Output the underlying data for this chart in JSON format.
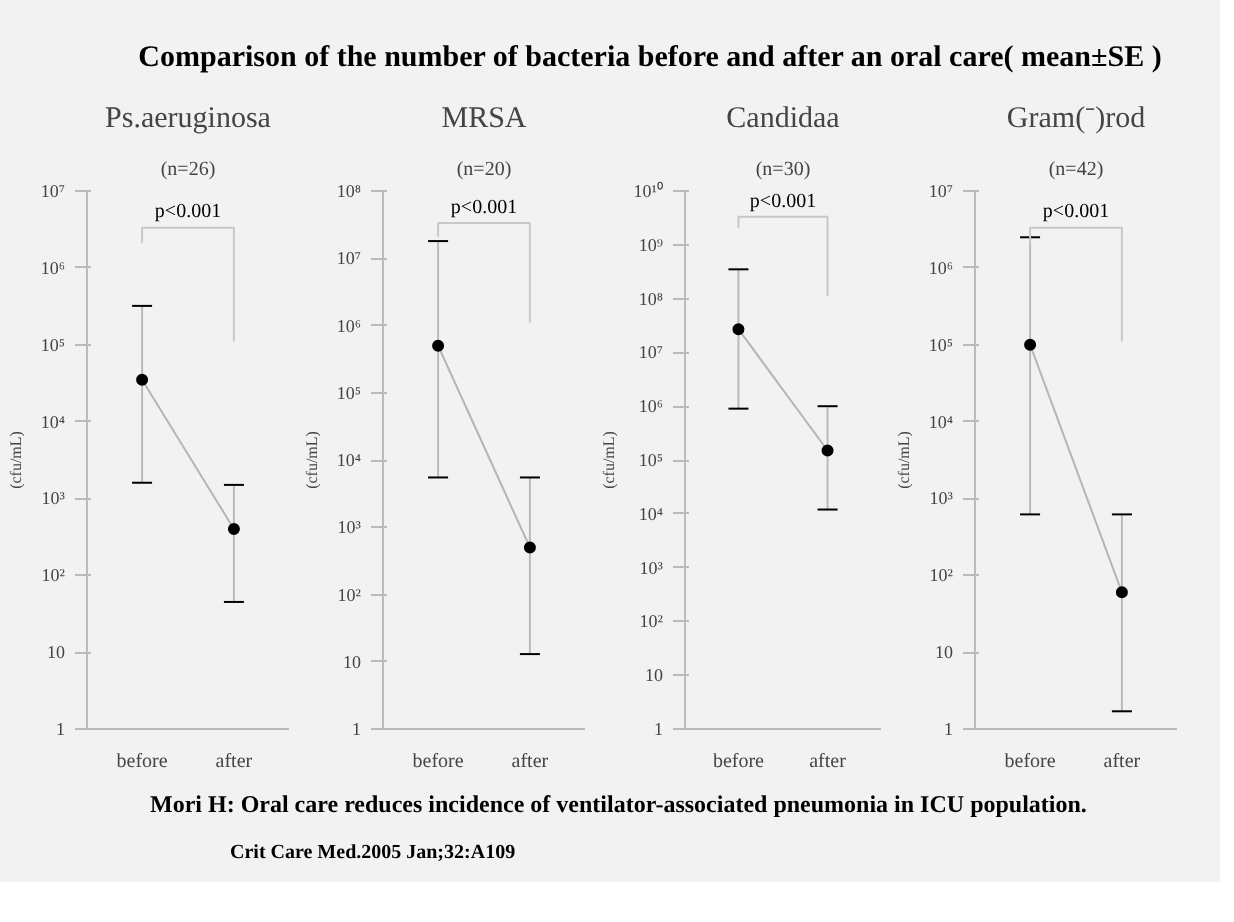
{
  "chart_data": [
    {
      "type": "other",
      "title": "Comparison of the number of bacteria before and after an oral care( mean±SE )",
      "annotations": [
        "Mori H: Oral care reduces incidence of ventilator-associated pneumonia in ICU population.",
        "Crit Care Med.2005 Jan;32:A109"
      ]
    },
    {
      "type": "line",
      "title": "Ps.aeruginosa",
      "subtitle": "(n=26)",
      "ylabel": "(cfu/mL)",
      "annotations": [
        "p<0.001"
      ],
      "categories": [
        "before",
        "after"
      ],
      "log": true,
      "marker": "circle",
      "ylim": [
        1,
        10000000
      ],
      "yticks": [
        {
          "value": 10000000,
          "label": "10⁷"
        },
        {
          "value": 1000000,
          "label": "10⁶"
        },
        {
          "value": 100000,
          "label": "10⁵"
        },
        {
          "value": 10000,
          "label": "10⁴"
        },
        {
          "value": 1000,
          "label": "10³"
        },
        {
          "value": 100,
          "label": "10²"
        },
        10,
        1
      ],
      "series": [
        {
          "color": "#000000",
          "values": [
            35000,
            400
          ],
          "errors": [
            [
              1600,
              320000
            ],
            [
              45,
              1500
            ]
          ]
        }
      ]
    },
    {
      "type": "line",
      "title": "MRSA",
      "subtitle": "(n=20)",
      "ylabel": "(cfu/mL)",
      "annotations": [
        "p<0.001"
      ],
      "categories": [
        "before",
        "after"
      ],
      "log": true,
      "marker": "circle",
      "ylim": [
        1,
        100000000
      ],
      "yticks": [
        {
          "value": 100000000,
          "label": "10⁸"
        },
        {
          "value": 10000000,
          "label": "10⁷"
        },
        {
          "value": 1000000,
          "label": "10⁶"
        },
        {
          "value": 100000,
          "label": "10⁵"
        },
        {
          "value": 10000,
          "label": "10⁴"
        },
        {
          "value": 1000,
          "label": "10³"
        },
        {
          "value": 100,
          "label": "10²"
        },
        10,
        1
      ],
      "series": [
        {
          "color": "#000000",
          "values": [
            500000,
            500
          ],
          "errors": [
            [
              5500,
              18000000
            ],
            [
              13,
              5500
            ]
          ]
        }
      ]
    },
    {
      "type": "line",
      "title": "Candidaa",
      "subtitle": "(n=30)",
      "ylabel": "(cfu/mL)",
      "annotations": [
        "p<0.001"
      ],
      "categories": [
        "before",
        "after"
      ],
      "log": true,
      "marker": "circle",
      "ylim": [
        1,
        10000000000
      ],
      "yticks": [
        {
          "value": 10000000000,
          "label": "10¹⁰"
        },
        {
          "value": 1000000000,
          "label": "10⁹"
        },
        {
          "value": 100000000,
          "label": "10⁸"
        },
        {
          "value": 10000000,
          "label": "10⁷"
        },
        {
          "value": 1000000,
          "label": "10⁶"
        },
        {
          "value": 100000,
          "label": "10⁵"
        },
        {
          "value": 10000,
          "label": "10⁴"
        },
        {
          "value": 1000,
          "label": "10³"
        },
        {
          "value": 100,
          "label": "10²"
        },
        10,
        1
      ],
      "series": [
        {
          "color": "#000000",
          "values": [
            27000000,
            150000
          ],
          "errors": [
            [
              900000,
              350000000
            ],
            [
              12000,
              1000000
            ]
          ]
        }
      ]
    },
    {
      "type": "line",
      "title": "Gram(⁻)rod",
      "subtitle": "(n=42)",
      "ylabel": "(cfu/mL)",
      "annotations": [
        "p<0.001"
      ],
      "categories": [
        "before",
        "after"
      ],
      "log": true,
      "marker": "circle",
      "ylim": [
        1,
        10000000
      ],
      "yticks": [
        {
          "value": 10000000,
          "label": "10⁷"
        },
        {
          "value": 1000000,
          "label": "10⁶"
        },
        {
          "value": 100000,
          "label": "10⁵"
        },
        {
          "value": 10000,
          "label": "10⁴"
        },
        {
          "value": 1000,
          "label": "10³"
        },
        {
          "value": 100,
          "label": "10²"
        },
        10,
        1
      ],
      "series": [
        {
          "color": "#000000",
          "values": [
            100000,
            60
          ],
          "errors": [
            [
              620,
              2500000
            ],
            [
              1.7,
              620
            ]
          ]
        }
      ]
    }
  ]
}
